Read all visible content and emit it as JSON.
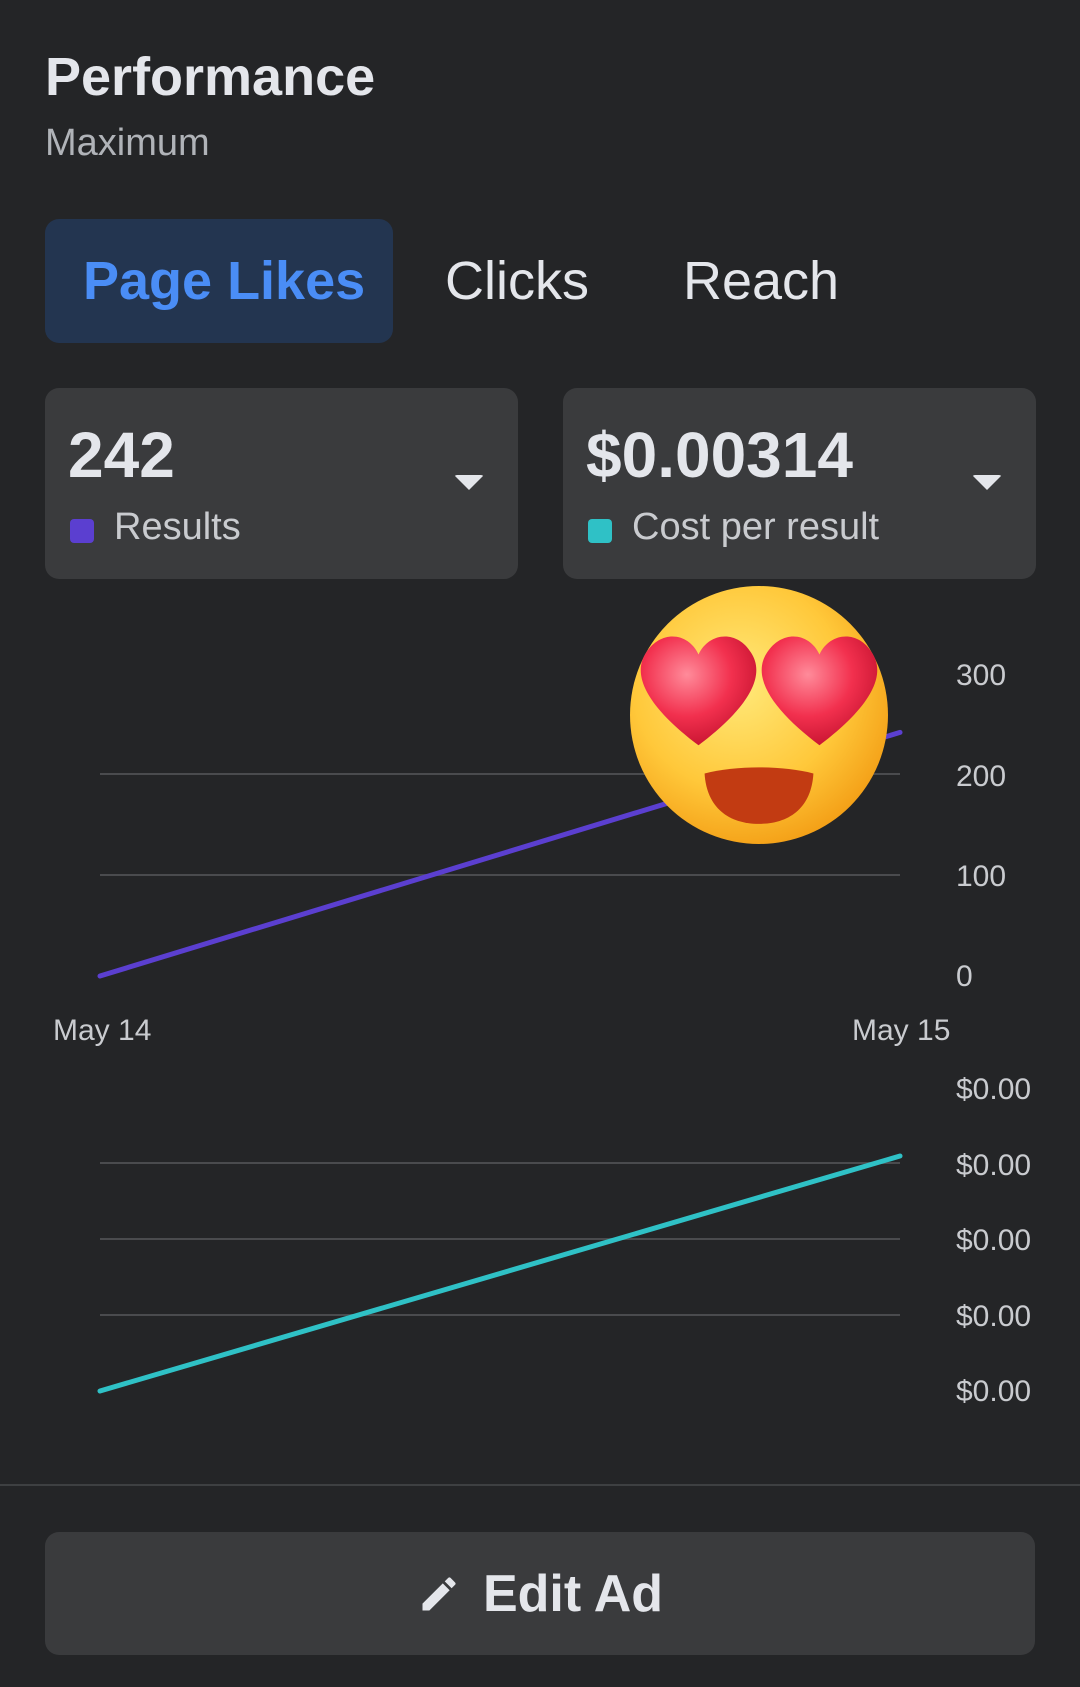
{
  "header": {
    "title": "Performance",
    "subtitle": "Maximum"
  },
  "tabs": [
    {
      "label": "Page Likes",
      "active": true
    },
    {
      "label": "Clicks",
      "active": false
    },
    {
      "label": "Reach",
      "active": false
    }
  ],
  "cards": [
    {
      "value": "242",
      "label": "Results",
      "color": "#5b3fd0"
    },
    {
      "value": "$0.00314",
      "label": "Cost per result",
      "color": "#2fc1c6"
    }
  ],
  "chart_data": [
    {
      "type": "line",
      "x": [
        "May 14",
        "May 15"
      ],
      "series": [
        {
          "values": [
            0,
            242
          ],
          "color": "#5b3fd0"
        }
      ],
      "ylim": [
        0,
        300
      ],
      "yticks": [
        "300",
        "200",
        "100",
        "0"
      ],
      "grid": true
    },
    {
      "type": "line",
      "x": [
        "May 14",
        "May 15"
      ],
      "series": [
        {
          "values": [
            0,
            0.00314
          ],
          "color": "#2fc1c6"
        }
      ],
      "ylim": [
        0,
        0.00314
      ],
      "yticks": [
        "$0.00",
        "$0.00",
        "$0.00",
        "$0.00",
        "$0.00"
      ],
      "grid": true
    }
  ],
  "overlay": {
    "icon": "heart-eyes-emoji-icon"
  },
  "footer": {
    "edit_label": "Edit Ad",
    "icon": "pencil-icon"
  }
}
